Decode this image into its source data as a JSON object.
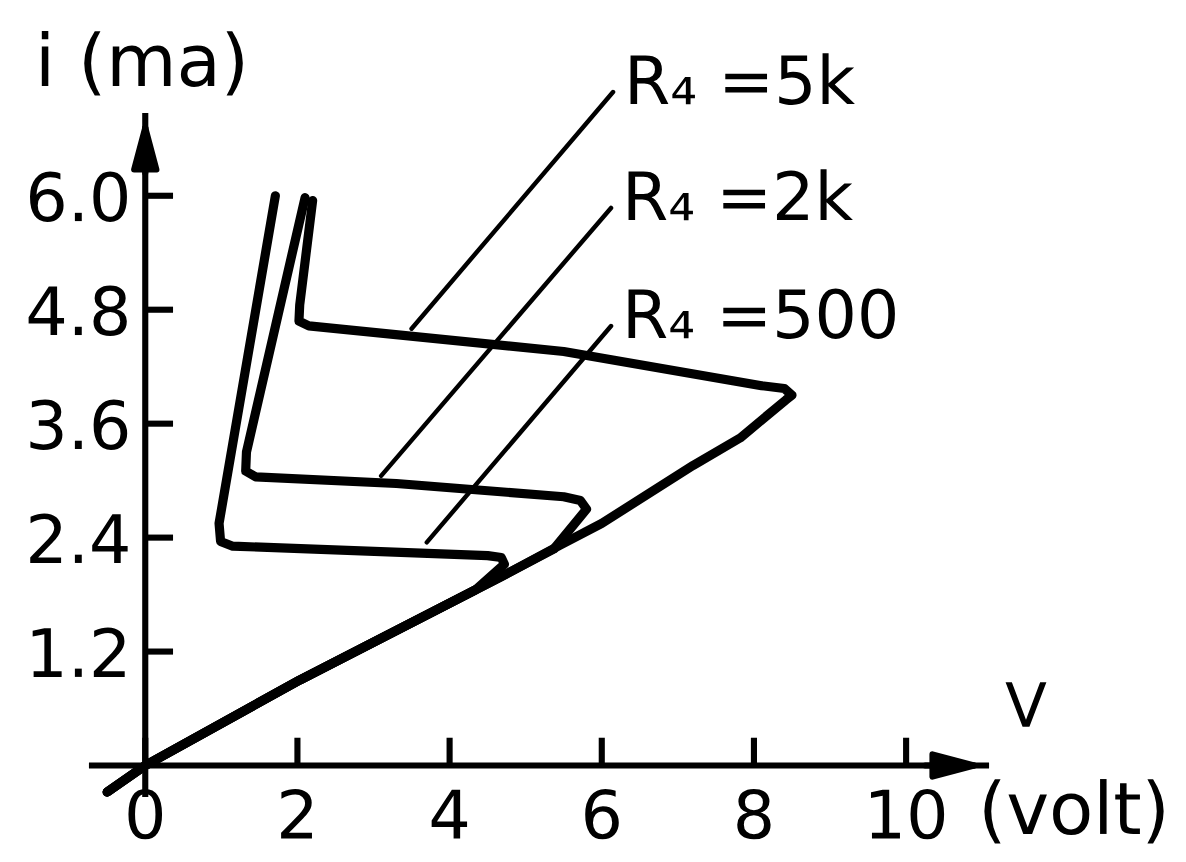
{
  "chart_data": {
    "type": "line",
    "line_style": "solid",
    "xlabel": "V (volt)",
    "ylabel": "i (ma)",
    "xlim": [
      -0.7,
      11.05
    ],
    "ylim": [
      -0.3,
      6.84
    ],
    "xticks": [
      0,
      2,
      4,
      6,
      8,
      10
    ],
    "yticks": [
      1.2,
      2.4,
      3.6,
      4.8,
      {
        "value": 6,
        "label": "6.0"
      }
    ],
    "series": [
      {
        "color": "#000000",
        "x": [
          -0.5,
          0,
          2.03,
          4.34,
          4.72,
          4.68,
          4.5,
          1.15,
          0.99,
          0.97,
          1.71
        ],
        "values": [
          -0.28,
          0,
          0.9,
          1.85,
          2.12,
          2.19,
          2.21,
          2.31,
          2.36,
          2.55,
          6.0
        ]
      },
      {
        "color": "#000000",
        "x": [
          -0.5,
          0,
          2.03,
          4.34,
          4.66,
          5.37,
          5.8,
          5.72,
          5.5,
          3.3,
          1.45,
          1.32,
          1.33,
          2.1
        ],
        "values": [
          -0.28,
          0,
          0.9,
          1.85,
          1.98,
          2.28,
          2.7,
          2.79,
          2.83,
          2.97,
          3.04,
          3.1,
          3.3,
          5.98
        ]
      },
      {
        "color": "#000000",
        "x": [
          -0.5,
          0,
          2.03,
          4.34,
          4.66,
          5.45,
          6.0,
          7.2,
          7.82,
          8.42,
          8.5,
          8.4,
          8.1,
          5.5,
          2.15,
          2.02,
          2.03,
          2.2
        ],
        "values": [
          -0.28,
          0,
          0.9,
          1.85,
          1.98,
          2.32,
          2.55,
          3.16,
          3.45,
          3.85,
          3.9,
          3.97,
          4.0,
          4.36,
          4.63,
          4.68,
          4.85,
          5.95
        ]
      }
    ],
    "annotations": [
      {
        "text": "R₄ =5k",
        "x": 3.5,
        "y": 4.6
      },
      {
        "text": "R₄ =2k",
        "x": 3.1,
        "y": 3.05
      },
      {
        "text": "R₄ =500",
        "x": 3.7,
        "y": 2.35
      }
    ]
  }
}
